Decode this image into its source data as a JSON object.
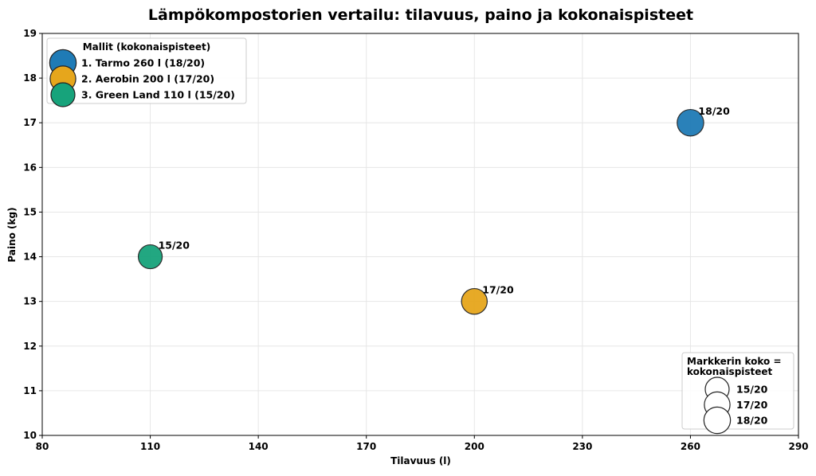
{
  "chart_data": {
    "type": "scatter",
    "title": "Lämpökompostorien vertailu: tilavuus, paino ja kokonaispisteet",
    "xlabel": "Tilavuus (l)",
    "ylabel": "Paino (kg)",
    "xlim": [
      80,
      290
    ],
    "ylim": [
      10,
      19
    ],
    "xticks": [
      80,
      110,
      140,
      170,
      200,
      230,
      260,
      290
    ],
    "yticks": [
      10,
      11,
      12,
      13,
      14,
      15,
      16,
      17,
      18,
      19
    ],
    "grid": true,
    "points": [
      {
        "name": "1. Tarmo 260 l (18/20)",
        "x": 260,
        "y": 17,
        "score": 18,
        "label": "18/20",
        "color": "#1f7bb6"
      },
      {
        "name": "2. Aerobin 200 l (17/20)",
        "x": 200,
        "y": 13,
        "score": 17,
        "label": "17/20",
        "color": "#e6a61c"
      },
      {
        "name": "3. Green Land 110 l (15/20)",
        "x": 110,
        "y": 14,
        "score": 15,
        "label": "15/20",
        "color": "#17a37b"
      }
    ],
    "legend": {
      "title": "Mallit (kokonaispisteet)",
      "placement": "top-left"
    },
    "size_legend": {
      "title_lines": [
        "Markkerin koko =",
        "kokonaispisteet"
      ],
      "entries": [
        "15/20",
        "17/20",
        "18/20"
      ],
      "placement": "bottom-right"
    }
  }
}
